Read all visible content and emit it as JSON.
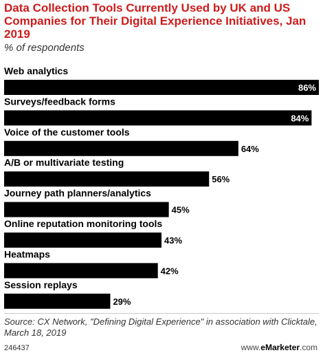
{
  "header": {
    "title": "Data Collection Tools Currently Used by UK and US Companies for Their Digital Experience Initiatives, Jan 2019",
    "subtitle": "% of respondents"
  },
  "footer": {
    "source": "Source: CX Network, \"Defining Digital Experience\" in association with Clicktale, March 18, 2019",
    "chart_id": "246437",
    "logo_prefix": "www.",
    "logo_brand": "eMarketer",
    "logo_suffix": ".com"
  },
  "colors": {
    "title": "#cc1b1b",
    "bar": "#000000",
    "value_inside": "#ffffff",
    "value_outside": "#000000"
  },
  "chart_data": {
    "type": "bar",
    "orientation": "horizontal",
    "title": "Data Collection Tools Currently Used by UK and US Companies for Their Digital Experience Initiatives, Jan 2019",
    "subtitle": "% of respondents",
    "categories": [
      "Web analytics",
      "Surveys/feedback forms",
      "Voice of the customer tools",
      "A/B or multivariate testing",
      "Journey path planners/analytics",
      "Online reputation monitoring tools",
      "Heatmaps",
      "Session replays"
    ],
    "values": [
      86,
      84,
      64,
      56,
      45,
      43,
      42,
      29
    ],
    "value_labels": [
      "86%",
      "84%",
      "64%",
      "56%",
      "45%",
      "43%",
      "42%",
      "29%"
    ],
    "xlim": [
      0,
      86
    ],
    "grid": false,
    "legend": "none"
  }
}
